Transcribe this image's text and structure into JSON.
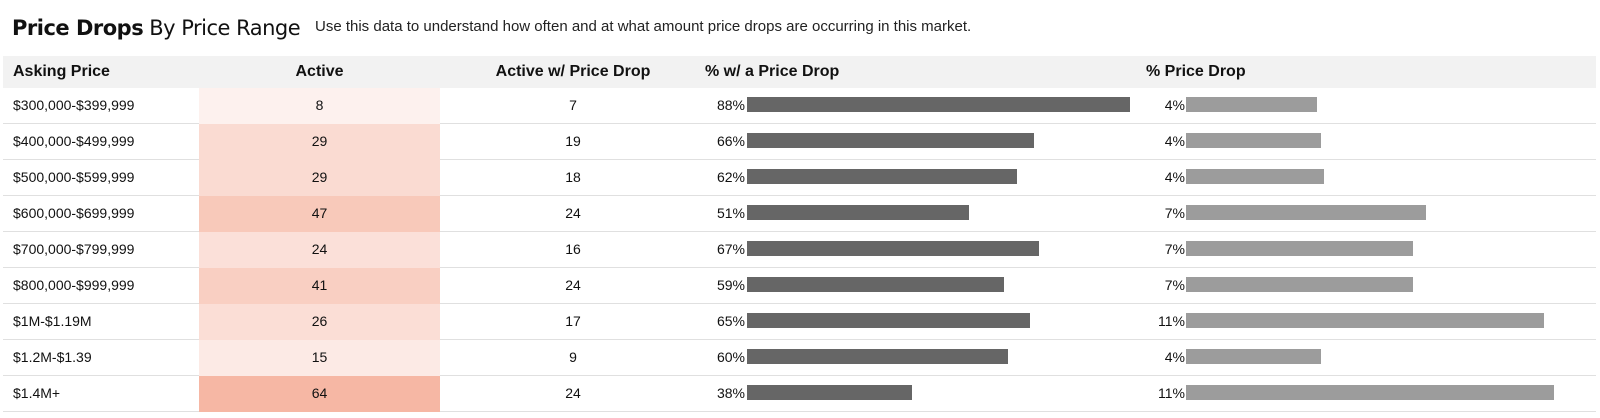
{
  "header": {
    "title_bold": "Price Drops",
    "title_light": "By Price Range",
    "subtitle": "Use this data to understand how often and at what amount price drops are occurring in this market."
  },
  "columns": [
    "Asking Price",
    "Active",
    "Active w/ Price Drop",
    "% w/ a Price Drop",
    "% Price Drop"
  ],
  "colors": {
    "pct_with_drop_bar": "#666666",
    "pct_drop_bar": "#9c9c9c",
    "active_heat_low": "#fdf1ee",
    "active_heat_high": "#f6b7a4"
  },
  "chart_data": {
    "type": "table",
    "rows": [
      {
        "price": "$300,000-$399,999",
        "active": 8,
        "active_drop": 7,
        "pct_with_drop": 88,
        "pct_with_drop_label": "88%",
        "pct_drop": 4,
        "pct_drop_label": "4%"
      },
      {
        "price": "$400,000-$499,999",
        "active": 29,
        "active_drop": 19,
        "pct_with_drop": 66,
        "pct_with_drop_label": "66%",
        "pct_drop": 4.1,
        "pct_drop_label": "4%"
      },
      {
        "price": "$500,000-$599,999",
        "active": 29,
        "active_drop": 18,
        "pct_with_drop": 62,
        "pct_with_drop_label": "62%",
        "pct_drop": 4.2,
        "pct_drop_label": "4%"
      },
      {
        "price": "$600,000-$699,999",
        "active": 47,
        "active_drop": 24,
        "pct_with_drop": 51,
        "pct_with_drop_label": "51%",
        "pct_drop": 7.3,
        "pct_drop_label": "7%"
      },
      {
        "price": "$700,000-$799,999",
        "active": 24,
        "active_drop": 16,
        "pct_with_drop": 67,
        "pct_with_drop_label": "67%",
        "pct_drop": 6.9,
        "pct_drop_label": "7%"
      },
      {
        "price": "$800,000-$999,999",
        "active": 41,
        "active_drop": 24,
        "pct_with_drop": 59,
        "pct_with_drop_label": "59%",
        "pct_drop": 6.9,
        "pct_drop_label": "7%"
      },
      {
        "price": "$1M-$1.19M",
        "active": 26,
        "active_drop": 17,
        "pct_with_drop": 65,
        "pct_with_drop_label": "65%",
        "pct_drop": 10.9,
        "pct_drop_label": "11%"
      },
      {
        "price": "$1.2M-$1.39",
        "active": 15,
        "active_drop": 9,
        "pct_with_drop": 60,
        "pct_with_drop_label": "60%",
        "pct_drop": 4.1,
        "pct_drop_label": "4%"
      },
      {
        "price": "$1.4M+",
        "active": 64,
        "active_drop": 24,
        "pct_with_drop": 38,
        "pct_with_drop_label": "38%",
        "pct_drop": 11.2,
        "pct_drop_label": "11%"
      }
    ]
  }
}
